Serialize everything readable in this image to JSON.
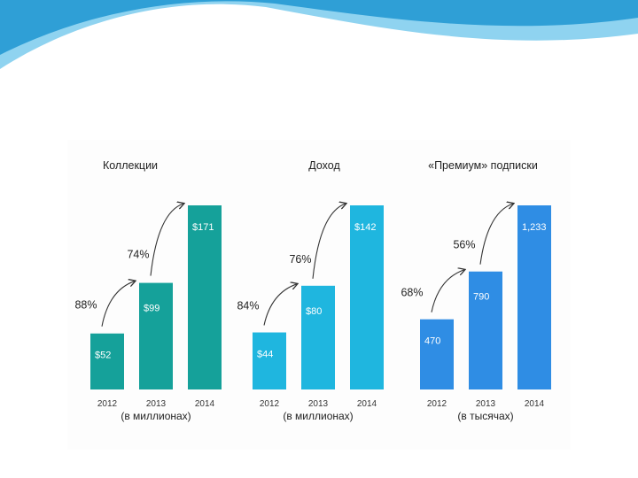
{
  "colors": {
    "wave_dark": "#2f9fd6",
    "wave_light": "#8fd3f0",
    "collections": "#15a19a",
    "revenue": "#1fb6df",
    "premium": "#2f8de4",
    "arrow": "#333333"
  },
  "chart_data": [
    {
      "type": "bar",
      "title": "Коллекции",
      "categories": [
        "2012",
        "2013",
        "2014"
      ],
      "values": [
        52,
        99,
        171
      ],
      "value_labels": [
        "$52",
        "$99",
        "$171"
      ],
      "growth_labels": [
        "88%",
        "74%"
      ],
      "unit_label": "(в миллионах)",
      "color": "#15a19a"
    },
    {
      "type": "bar",
      "title": "Доход",
      "categories": [
        "2012",
        "2013",
        "2014"
      ],
      "values": [
        44,
        80,
        142
      ],
      "value_labels": [
        "$44",
        "$80",
        "$142"
      ],
      "growth_labels": [
        "84%",
        "76%"
      ],
      "unit_label": "(в миллионах)",
      "color": "#1fb6df"
    },
    {
      "type": "bar",
      "title": "«Премиум» подписки",
      "categories": [
        "2012",
        "2013",
        "2014"
      ],
      "values": [
        470,
        790,
        1233
      ],
      "value_labels": [
        "470",
        "790",
        "1,233"
      ],
      "growth_labels": [
        "68%",
        "56%"
      ],
      "unit_label": "(в тысячах)",
      "color": "#2f8de4"
    }
  ]
}
